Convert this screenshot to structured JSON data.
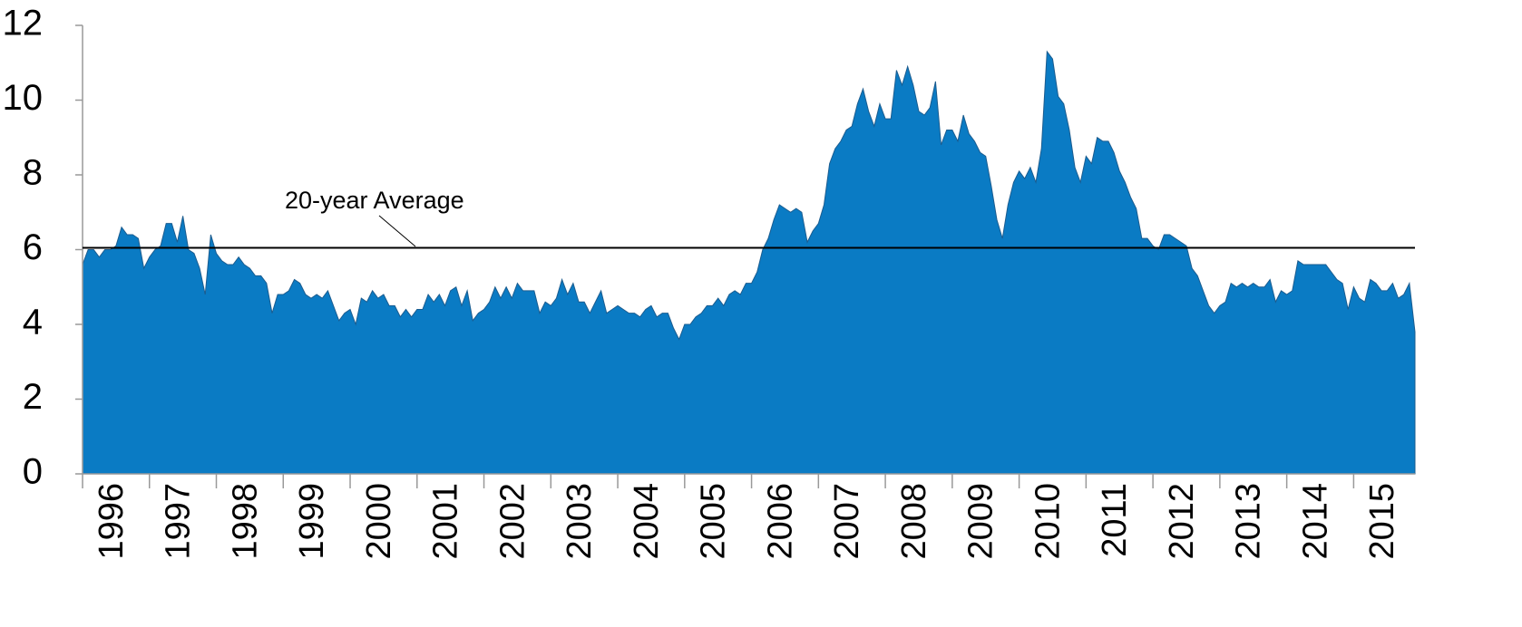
{
  "chart_data": {
    "type": "area",
    "color": "#0a7bc4",
    "annotation": "20-year Average",
    "average": 6.05,
    "ylim": [
      0,
      12
    ],
    "yticks": [
      0,
      2,
      4,
      6,
      8,
      10,
      12
    ],
    "categories": [
      null,
      null,
      null,
      null,
      null,
      null,
      "1996",
      null,
      null,
      null,
      null,
      null,
      null,
      null,
      null,
      null,
      null,
      null,
      "1997",
      null,
      null,
      null,
      null,
      null,
      null,
      null,
      null,
      null,
      null,
      null,
      "1998",
      null,
      null,
      null,
      null,
      null,
      null,
      null,
      null,
      null,
      null,
      null,
      "1999",
      null,
      null,
      null,
      null,
      null,
      null,
      null,
      null,
      null,
      null,
      null,
      "2000",
      null,
      null,
      null,
      null,
      null,
      null,
      null,
      null,
      null,
      null,
      null,
      "2001",
      null,
      null,
      null,
      null,
      null,
      null,
      null,
      null,
      null,
      null,
      null,
      "2002",
      null,
      null,
      null,
      null,
      null,
      null,
      null,
      null,
      null,
      null,
      null,
      "2003",
      null,
      null,
      null,
      null,
      null,
      null,
      null,
      null,
      null,
      null,
      null,
      "2004",
      null,
      null,
      null,
      null,
      null,
      null,
      null,
      null,
      null,
      null,
      null,
      "2005",
      null,
      null,
      null,
      null,
      null,
      null,
      null,
      null,
      null,
      null,
      null,
      "2006",
      null,
      null,
      null,
      null,
      null,
      null,
      null,
      null,
      null,
      null,
      null,
      "2007",
      null,
      null,
      null,
      null,
      null,
      null,
      null,
      null,
      null,
      null,
      null,
      "2008",
      null,
      null,
      null,
      null,
      null,
      null,
      null,
      null,
      null,
      null,
      null,
      "2009",
      null,
      null,
      null,
      null,
      null,
      null,
      null,
      null,
      null,
      null,
      null,
      "2010",
      null,
      null,
      null,
      null,
      null,
      null,
      null,
      null,
      null,
      null,
      null,
      "2011",
      null,
      null,
      null,
      null,
      null,
      null,
      null,
      null,
      null,
      null,
      null,
      "2012",
      null,
      null,
      null,
      null,
      null,
      null,
      null,
      null,
      null,
      null,
      null,
      "2013",
      null,
      null,
      null,
      null,
      null,
      null,
      null,
      null,
      null,
      null,
      null,
      "2014",
      null,
      null,
      null,
      null,
      null,
      null,
      null,
      null,
      null,
      null,
      null,
      "2015",
      null,
      null,
      null,
      null,
      null
    ],
    "values": [
      5.6,
      6.0,
      6.0,
      5.8,
      6.0,
      6.0,
      6.1,
      6.6,
      6.4,
      6.4,
      6.3,
      5.5,
      5.8,
      6.0,
      6.1,
      6.7,
      6.7,
      6.2,
      6.9,
      6.0,
      5.9,
      5.5,
      4.8,
      6.4,
      5.9,
      5.7,
      5.6,
      5.6,
      5.8,
      5.6,
      5.5,
      5.3,
      5.3,
      5.1,
      4.3,
      4.8,
      4.8,
      4.9,
      5.2,
      5.1,
      4.8,
      4.7,
      4.8,
      4.7,
      4.9,
      4.5,
      4.1,
      4.3,
      4.4,
      4.0,
      4.7,
      4.6,
      4.9,
      4.7,
      4.8,
      4.5,
      4.5,
      4.2,
      4.4,
      4.2,
      4.4,
      4.4,
      4.8,
      4.6,
      4.8,
      4.5,
      4.9,
      5.0,
      4.5,
      4.9,
      4.1,
      4.3,
      4.4,
      4.6,
      5.0,
      4.7,
      5.0,
      4.7,
      5.1,
      4.9,
      4.9,
      4.9,
      4.3,
      4.6,
      4.5,
      4.7,
      5.2,
      4.8,
      5.1,
      4.6,
      4.6,
      4.3,
      4.6,
      4.9,
      4.3,
      4.4,
      4.5,
      4.4,
      4.3,
      4.3,
      4.2,
      4.4,
      4.5,
      4.2,
      4.3,
      4.3,
      3.9,
      3.6,
      4.0,
      4.0,
      4.2,
      4.3,
      4.5,
      4.5,
      4.7,
      4.5,
      4.8,
      4.9,
      4.8,
      5.1,
      5.1,
      5.4,
      6.0,
      6.3,
      6.8,
      7.2,
      7.1,
      7.0,
      7.1,
      7.0,
      6.2,
      6.5,
      6.7,
      7.2,
      8.3,
      8.7,
      8.9,
      9.2,
      9.3,
      9.9,
      10.3,
      9.7,
      9.3,
      9.9,
      9.5,
      9.5,
      10.8,
      10.4,
      10.9,
      10.4,
      9.7,
      9.6,
      9.8,
      10.5,
      8.8,
      9.2,
      9.2,
      8.9,
      9.6,
      9.1,
      8.9,
      8.6,
      8.5,
      7.7,
      6.8,
      6.3,
      7.2,
      7.8,
      8.1,
      7.9,
      8.2,
      7.8,
      8.7,
      11.3,
      11.1,
      10.1,
      9.9,
      9.2,
      8.2,
      7.8,
      8.5,
      8.3,
      9.0,
      8.9,
      8.9,
      8.6,
      8.1,
      7.8,
      7.4,
      7.1,
      6.3,
      6.3,
      6.1,
      6.0,
      6.4,
      6.4,
      6.3,
      6.2,
      6.1,
      5.5,
      5.3,
      4.9,
      4.5,
      4.3,
      4.5,
      4.6,
      5.1,
      5.0,
      5.1,
      5.0,
      5.1,
      5.0,
      5.0,
      5.2,
      4.6,
      4.9,
      4.8,
      4.9,
      5.7,
      5.6,
      5.6,
      5.6,
      5.6,
      5.6,
      5.4,
      5.2,
      5.1,
      4.4,
      5.0,
      4.7,
      4.6,
      5.2,
      5.1,
      4.9,
      4.9,
      5.1,
      4.7,
      4.8,
      5.1,
      3.8
    ]
  }
}
